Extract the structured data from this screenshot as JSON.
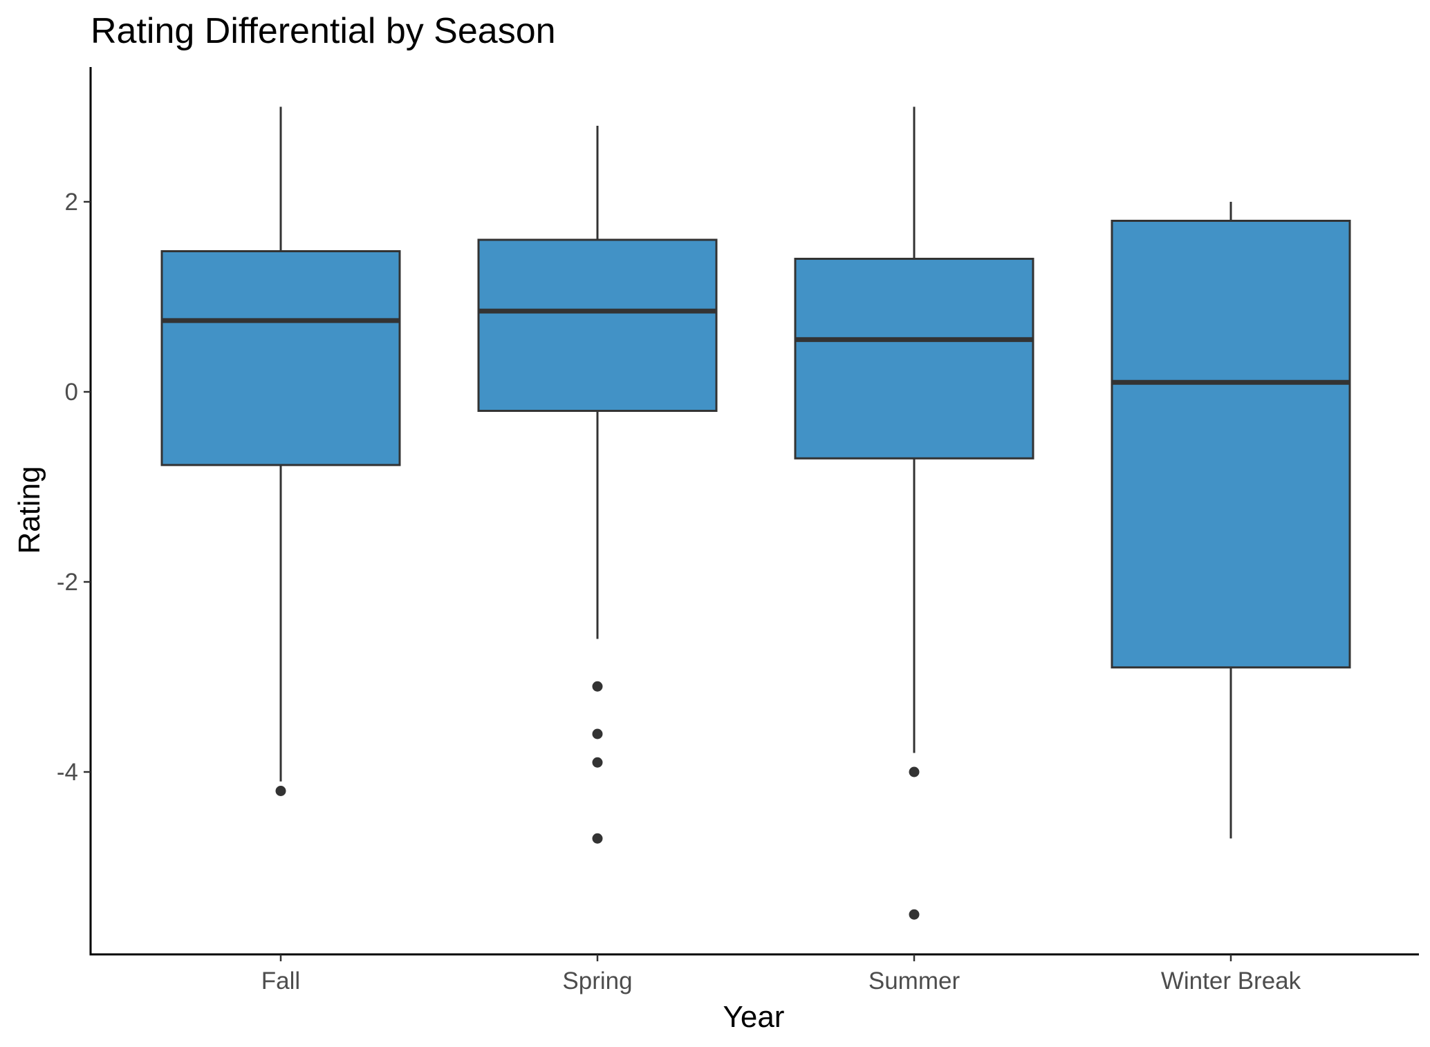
{
  "chart_data": {
    "type": "boxplot",
    "title": "Rating Differential by Season",
    "xlabel": "Year",
    "ylabel": "Rating",
    "ylim": [
      -5.9,
      3.4
    ],
    "yticks": [
      -4,
      -2,
      0,
      2
    ],
    "ytick_labels": [
      "-4",
      "-2",
      "0",
      "2"
    ],
    "fill_color": "#4292C6",
    "line_color": "#333333",
    "grid": false,
    "legend": "none",
    "categories": [
      "Fall",
      "Spring",
      "Summer",
      "Winter Break"
    ],
    "boxes": [
      {
        "name": "Fall",
        "lower_whisker": -4.1,
        "q1": -0.77,
        "median": 0.75,
        "q3": 1.48,
        "upper_whisker": 3.0,
        "outliers": [
          -4.2
        ]
      },
      {
        "name": "Spring",
        "lower_whisker": -2.6,
        "q1": -0.2,
        "median": 0.85,
        "q3": 1.6,
        "upper_whisker": 2.8,
        "outliers": [
          -3.1,
          -3.6,
          -3.9,
          -4.7
        ]
      },
      {
        "name": "Summer",
        "lower_whisker": -3.8,
        "q1": -0.7,
        "median": 0.55,
        "q3": 1.4,
        "upper_whisker": 3.0,
        "outliers": [
          -4.0,
          -5.5
        ]
      },
      {
        "name": "Winter Break",
        "lower_whisker": -4.7,
        "q1": -2.9,
        "median": 0.1,
        "q3": 1.8,
        "upper_whisker": 2.0,
        "outliers": []
      }
    ]
  }
}
